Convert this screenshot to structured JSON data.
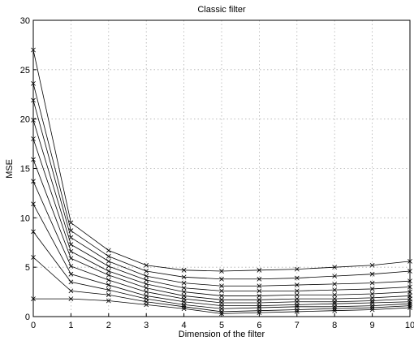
{
  "chart_data": {
    "type": "line",
    "title": "Classic filter",
    "xlabel": "Dimension of the filter",
    "ylabel": "MSE",
    "xlim": [
      0,
      10
    ],
    "ylim": [
      0,
      30
    ],
    "xticks": [
      0,
      1,
      2,
      3,
      4,
      5,
      6,
      7,
      8,
      9,
      10
    ],
    "yticks": [
      0,
      5,
      10,
      15,
      20,
      25,
      30
    ],
    "grid": true,
    "marker": "x",
    "line_color": "#000000",
    "grid_color": "#b0b0b0",
    "x": [
      0,
      1,
      2,
      3,
      4,
      5,
      6,
      7,
      8,
      9,
      10
    ],
    "series": [
      {
        "values": [
          27.0,
          9.5,
          6.7,
          5.2,
          4.7,
          4.6,
          4.7,
          4.8,
          5.0,
          5.2,
          5.6
        ]
      },
      {
        "values": [
          23.6,
          8.7,
          6.1,
          4.6,
          4.0,
          3.8,
          3.8,
          3.9,
          4.1,
          4.3,
          4.6
        ]
      },
      {
        "values": [
          21.9,
          8.0,
          5.6,
          4.1,
          3.4,
          3.1,
          3.1,
          3.2,
          3.3,
          3.4,
          3.6
        ]
      },
      {
        "values": [
          19.9,
          7.3,
          5.1,
          3.7,
          2.9,
          2.6,
          2.6,
          2.6,
          2.7,
          2.8,
          3.0
        ]
      },
      {
        "values": [
          18.0,
          6.6,
          4.6,
          3.3,
          2.5,
          2.1,
          2.1,
          2.2,
          2.2,
          2.3,
          2.5
        ]
      },
      {
        "values": [
          15.9,
          5.9,
          4.2,
          2.9,
          2.1,
          1.7,
          1.7,
          1.8,
          1.8,
          1.9,
          2.1
        ]
      },
      {
        "values": [
          13.7,
          5.1,
          3.7,
          2.5,
          1.8,
          1.4,
          1.4,
          1.5,
          1.5,
          1.6,
          1.8
        ]
      },
      {
        "values": [
          11.4,
          4.3,
          3.2,
          2.1,
          1.5,
          1.1,
          1.1,
          1.2,
          1.3,
          1.4,
          1.5
        ]
      },
      {
        "values": [
          8.6,
          3.5,
          2.7,
          1.8,
          1.2,
          0.8,
          0.9,
          1.0,
          1.0,
          1.1,
          1.3
        ]
      },
      {
        "values": [
          6.0,
          2.6,
          2.2,
          1.5,
          1.0,
          0.5,
          0.6,
          0.7,
          0.8,
          0.9,
          1.1
        ]
      },
      {
        "values": [
          1.8,
          1.8,
          1.6,
          1.2,
          0.8,
          0.3,
          0.4,
          0.5,
          0.6,
          0.7,
          0.9
        ]
      }
    ]
  }
}
